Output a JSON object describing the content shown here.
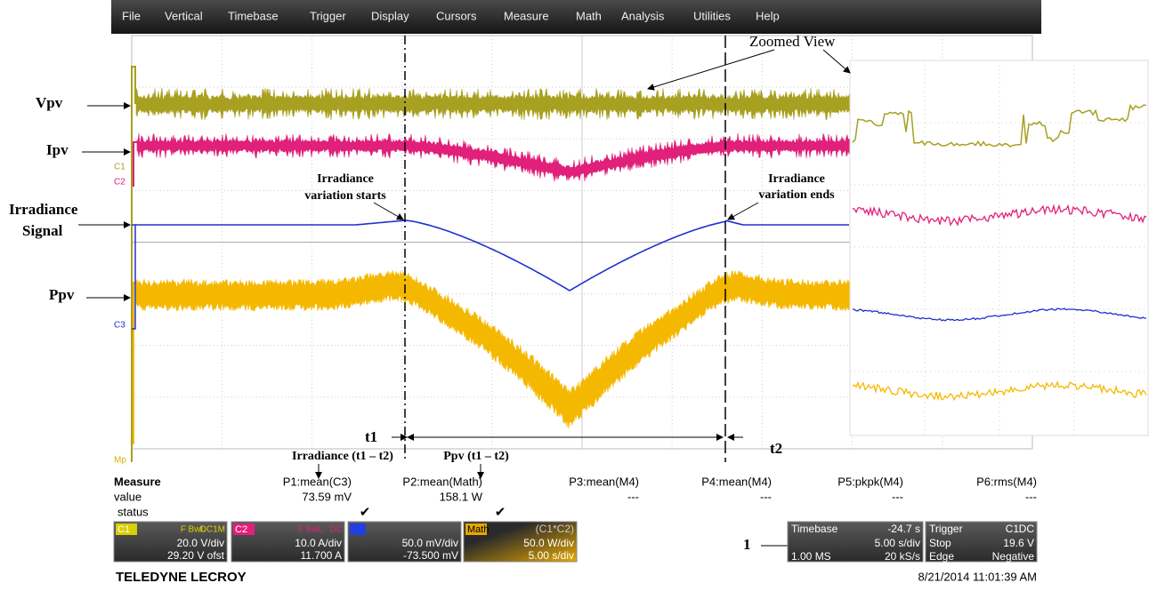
{
  "menu": [
    "File",
    "Vertical",
    "Timebase",
    "Trigger",
    "Display",
    "Cursors",
    "Measure",
    "Math",
    "Analysis",
    "Utilities",
    "Help"
  ],
  "trace_labels": [
    "C1",
    "C2",
    "C3",
    "Mp"
  ],
  "annotations": {
    "vpv": "Vpv",
    "ipv": "Ipv",
    "irradiance": "Irradiance",
    "signal": "Signal",
    "ppv": "Ppv",
    "zoomed_view": "Zoomed View",
    "start_1": "Irradiance",
    "start_2": "variation starts",
    "end_1": "Irradiance",
    "end_2": "variation ends",
    "t1": "t1",
    "t2": "t2",
    "irradiance_mean": "Irradiance (t1 – t2)",
    "ppv_mean": "Ppv (t1 – t2)",
    "marker": "1"
  },
  "measure": {
    "header": [
      "Measure",
      "P1:mean(C3)",
      "P2:mean(Math)",
      "P3:mean(M4)",
      "P4:mean(M4)",
      "P5:pkpk(M4)",
      "P6:rms(M4)"
    ],
    "value": [
      "value",
      "73.59 mV",
      "158.1 W",
      "---",
      "---",
      "---",
      "---"
    ],
    "status": "status"
  },
  "channels": [
    {
      "tag": "C1",
      "flags": [
        "F",
        "BwL",
        "DC1M"
      ],
      "lines": [
        "20.0 V/div",
        "29.20 V ofst"
      ]
    },
    {
      "tag": "C2",
      "flags": [
        "F",
        "BwL",
        "DC"
      ],
      "lines": [
        "10.0 A/div",
        "11.700 A"
      ]
    },
    {
      "lines": [
        "50.0 mV/div",
        "-73.500 mV"
      ]
    },
    {
      "tag": "Math",
      "formula": "(C1*C2)",
      "lines": [
        "50.0 W/div",
        "5.00 s/div"
      ]
    }
  ],
  "timebase": {
    "title": "Timebase",
    "delay": "-24.7 s",
    "scale": "5.00 s/div",
    "samples": "1.00 MS",
    "rate": "20 kS/s"
  },
  "trigger": {
    "title": "Trigger",
    "source": "C1",
    "coupling": "DC",
    "mode": "Stop",
    "level": "19.6 V",
    "type": "Edge",
    "slope": "Negative"
  },
  "brand": "TELEDYNE LECROY",
  "datetime": "8/21/2014 11:01:39 AM"
}
